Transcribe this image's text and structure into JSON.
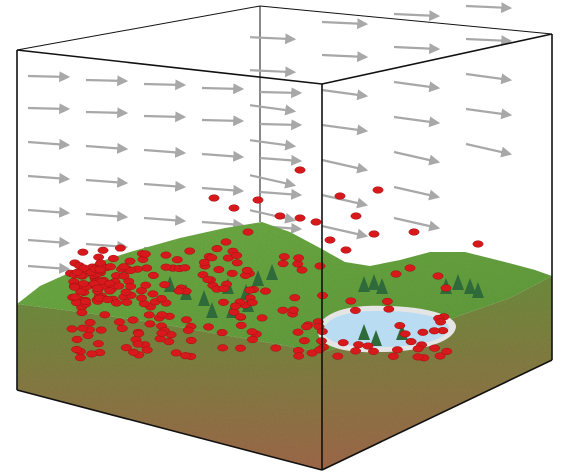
{
  "diagram": {
    "kind": "terrain-box-with-wind-and-particles",
    "colors": {
      "background": "#ffffff",
      "box_edge": "#111111",
      "wind_arrow": "#a8a8a8",
      "particle": "#d7191c",
      "particle_edge": "#9e0f12",
      "grass_top": "#6fae45",
      "grass_mid": "#5f9a3a",
      "soil_top": "#6f8e3d",
      "soil_bottom": "#a0694a",
      "lake_fill": "#b9dcf2",
      "lake_edge": "#e5e5e5",
      "tree": "#2f6b3a"
    },
    "elements": {
      "box": "box-outline",
      "wind": "wind-arrow-field",
      "terrain": "terrain-block",
      "lake": "lake",
      "trees": "tree-group",
      "particles": "particle-cloud"
    }
  }
}
